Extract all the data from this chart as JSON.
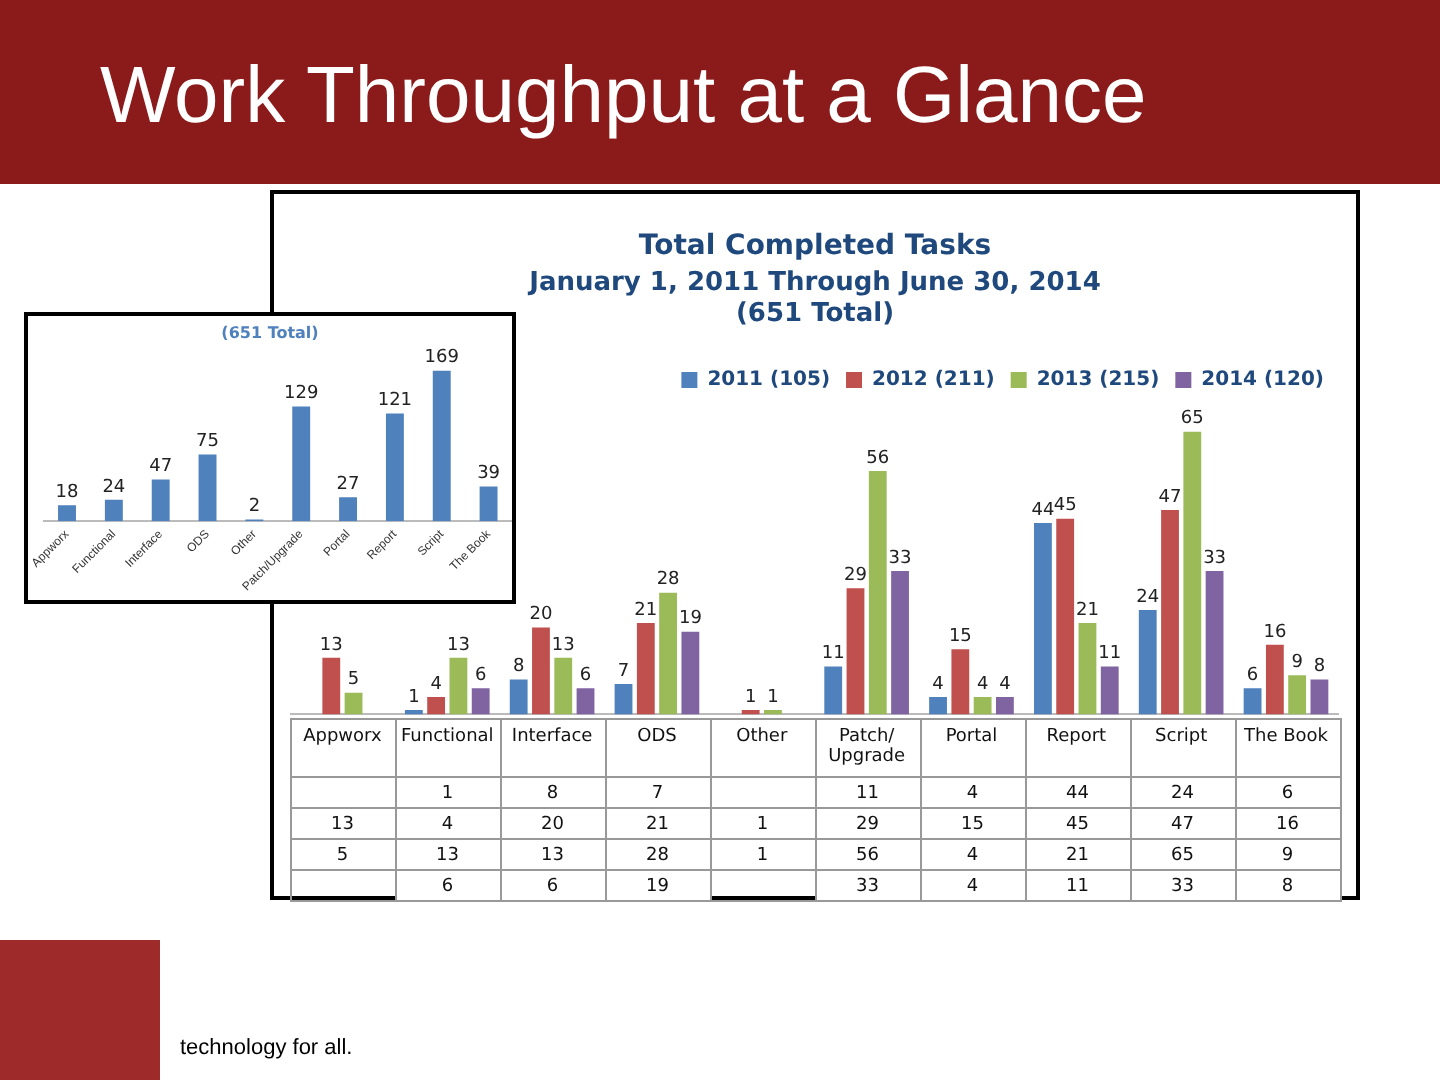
{
  "chart_data": [
    {
      "type": "bar",
      "title": "Total Completed Tasks",
      "subtitle": "January 1, 2011 Through June 30, 2014\n(651 Total)",
      "annotations": [
        "Work Throughput at a Glance",
        "technology for all."
      ],
      "categories": [
        "Appworx",
        "Functional",
        "Interface",
        "ODS",
        "Other",
        "Patch/ Upgrade",
        "Portal",
        "Report",
        "Script",
        "The Book"
      ],
      "series": [
        {
          "name": "2011 (105)",
          "color": "#4f81bd",
          "values": [
            null,
            1,
            8,
            7,
            null,
            11,
            4,
            44,
            24,
            6
          ],
          "value_labels": [
            null,
            "1",
            "8",
            "7",
            null,
            "11",
            "4",
            "44",
            "24",
            "6"
          ]
        },
        {
          "name": "2012 (211)",
          "color": "#c0504d",
          "values": [
            13,
            4,
            20,
            21,
            1,
            29,
            15,
            45,
            47,
            16
          ],
          "value_labels": [
            "13",
            "4",
            "20",
            "21",
            "1",
            "29",
            "15",
            "45",
            "47",
            "16"
          ]
        },
        {
          "name": "2013 (215)",
          "color": "#9bbb59",
          "values": [
            5,
            13,
            13,
            28,
            1,
            56,
            4,
            21,
            65,
            9
          ],
          "value_labels": [
            "5",
            "13",
            "13",
            "28",
            "1",
            "56",
            "4",
            "21",
            "65",
            "9"
          ]
        },
        {
          "name": "2014 (120)",
          "color": "#8064a2",
          "values": [
            null,
            6,
            6,
            19,
            null,
            33,
            4,
            11,
            33,
            8
          ],
          "value_labels": [
            null,
            "6",
            "6",
            "19",
            null,
            "33",
            "4",
            "11",
            "33",
            "8"
          ]
        }
      ],
      "legend": "top",
      "grid": false
    },
    {
      "type": "heatmap",
      "categories": [
        null,
        null,
        null,
        null,
        null,
        null,
        null,
        null,
        null,
        null
      ],
      "y_categories": [
        null,
        null,
        null,
        null
      ],
      "cells": [
        [
          null,
          1,
          8,
          7,
          null,
          11,
          4,
          44,
          24,
          6
        ],
        [
          13,
          4,
          20,
          21,
          1,
          29,
          15,
          45,
          47,
          16
        ],
        [
          5,
          13,
          13,
          28,
          1,
          56,
          4,
          21,
          65,
          9
        ],
        [
          null,
          6,
          6,
          19,
          null,
          33,
          4,
          11,
          33,
          8
        ]
      ],
      "data_labels": true
    },
    {
      "type": "bar",
      "title": "(651 Total)",
      "categories": [
        "Appworx",
        "Functional",
        "Interface",
        "ODS",
        "Other",
        "Patch/Upgrade",
        "Portal",
        "Report",
        "Script",
        "The Book"
      ],
      "values": [
        18,
        24,
        47,
        75,
        2,
        129,
        27,
        121,
        169,
        39
      ],
      "color": "#4f81bd",
      "data_labels": true,
      "grid": false
    }
  ]
}
